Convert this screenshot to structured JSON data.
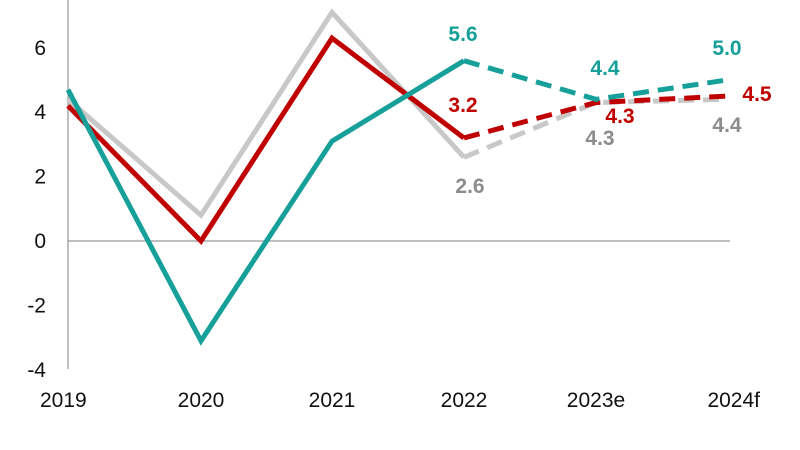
{
  "chart_data": {
    "type": "line",
    "title": "",
    "xlabel": "",
    "ylabel": "",
    "categories": [
      "2019",
      "2020",
      "2021",
      "2022",
      "2023e",
      "2024f"
    ],
    "y_ticks": [
      "-4",
      "-2",
      "0",
      "2",
      "4",
      "6"
    ],
    "ylim": [
      -4,
      7.5
    ],
    "grid": false,
    "legend": "none",
    "dashed_from_category": "2022",
    "series": [
      {
        "name": "series-gray",
        "color": "#c8c8c8",
        "label_color": "#8c8c8c",
        "values": [
          4.4,
          0.8,
          7.1,
          2.6,
          4.3,
          4.4
        ],
        "labels": [
          null,
          null,
          null,
          "2.6",
          "4.3",
          "4.4"
        ]
      },
      {
        "name": "series-red",
        "color": "#c00000",
        "label_color": "#c00000",
        "values": [
          4.2,
          0.0,
          6.3,
          3.2,
          4.3,
          4.5
        ],
        "labels": [
          null,
          null,
          null,
          "3.2",
          "4.3",
          "4.5"
        ]
      },
      {
        "name": "series-teal",
        "color": "#17a09a",
        "label_color": "#17a09a",
        "values": [
          4.7,
          -3.1,
          3.1,
          5.6,
          4.4,
          5.0
        ],
        "labels": [
          null,
          null,
          null,
          "5.6",
          "4.4",
          "5.0"
        ]
      }
    ]
  }
}
